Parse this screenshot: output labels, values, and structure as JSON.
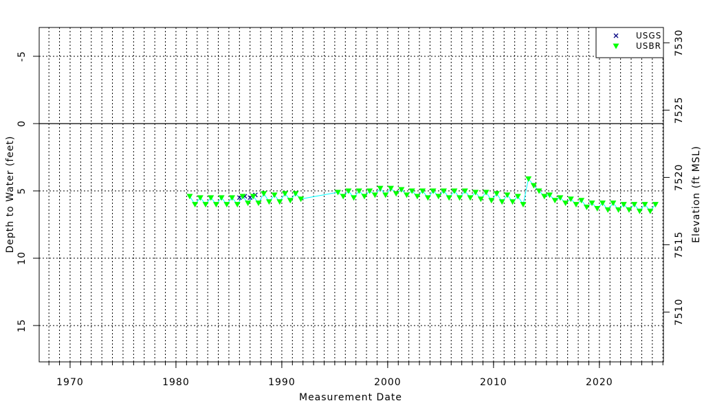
{
  "chart_data": {
    "type": "scatter",
    "xlabel": "Measurement Date",
    "ylabel": "Depth to Water (feet)",
    "y2label": "Elevation (ft MSL)",
    "xlim": [
      1967.08,
      2026.05
    ],
    "xticks": [
      1970,
      1980,
      1990,
      2000,
      2010,
      2020
    ],
    "x_minor_step": 1,
    "ylim": [
      -7.14,
      17.7
    ],
    "y_inverted": true,
    "yticks": [
      -5,
      0,
      5,
      10,
      15
    ],
    "zero_line": true,
    "y2lim": [
      7506.3,
      7531.14
    ],
    "y2ticks": [
      7510,
      7515,
      7520,
      7525,
      7530
    ],
    "grid": true,
    "legend": "top-right",
    "series": [
      {
        "name": "USGS",
        "color": "#000080",
        "marker": "x",
        "x": [
          1986.0,
          1986.5,
          1987.0,
          1987.5
        ],
        "values": [
          5.5,
          5.4,
          5.5,
          5.3
        ]
      },
      {
        "name": "USBR",
        "color": "#00ff00",
        "line_color": "#00ffff",
        "marker": "triangle-down",
        "x": [
          1981.3,
          1981.8,
          1982.3,
          1982.8,
          1983.3,
          1983.8,
          1984.3,
          1984.8,
          1985.3,
          1985.8,
          1986.3,
          1986.8,
          1987.3,
          1987.8,
          1988.3,
          1988.8,
          1989.3,
          1989.8,
          1990.3,
          1990.8,
          1991.3,
          1991.8,
          1995.3,
          1995.8,
          1996.3,
          1996.8,
          1997.3,
          1997.8,
          1998.3,
          1998.8,
          1999.3,
          1999.8,
          2000.3,
          2000.8,
          2001.3,
          2001.8,
          2002.3,
          2002.8,
          2003.3,
          2003.8,
          2004.3,
          2004.8,
          2005.3,
          2005.8,
          2006.3,
          2006.8,
          2007.3,
          2007.8,
          2008.3,
          2008.8,
          2009.3,
          2009.8,
          2010.3,
          2010.8,
          2011.3,
          2011.8,
          2012.3,
          2012.8,
          2013.3,
          2013.8,
          2014.3,
          2014.8,
          2015.3,
          2015.8,
          2016.3,
          2016.8,
          2017.3,
          2017.8,
          2018.3,
          2018.8,
          2019.3,
          2019.8,
          2020.3,
          2020.8,
          2021.3,
          2021.8,
          2022.3,
          2022.8,
          2023.3,
          2023.8,
          2024.3,
          2024.8,
          2025.3
        ],
        "values": [
          5.4,
          6.0,
          5.5,
          6.0,
          5.5,
          6.0,
          5.5,
          6.0,
          5.5,
          6.0,
          5.4,
          5.9,
          5.4,
          5.9,
          5.2,
          5.8,
          5.3,
          5.8,
          5.2,
          5.7,
          5.2,
          5.6,
          5.1,
          5.4,
          5.0,
          5.5,
          5.0,
          5.4,
          5.0,
          5.3,
          4.8,
          5.3,
          4.8,
          5.2,
          4.9,
          5.3,
          5.0,
          5.4,
          5.0,
          5.5,
          5.0,
          5.4,
          5.0,
          5.5,
          5.0,
          5.5,
          5.0,
          5.5,
          5.1,
          5.6,
          5.1,
          5.7,
          5.2,
          5.8,
          5.3,
          5.8,
          5.4,
          6.0,
          4.1,
          4.6,
          5.0,
          5.4,
          5.3,
          5.7,
          5.5,
          5.9,
          5.6,
          6.0,
          5.7,
          6.2,
          5.9,
          6.3,
          5.9,
          6.4,
          5.9,
          6.4,
          6.0,
          6.4,
          6.0,
          6.5,
          6.0,
          6.5,
          6.0
        ]
      }
    ]
  }
}
